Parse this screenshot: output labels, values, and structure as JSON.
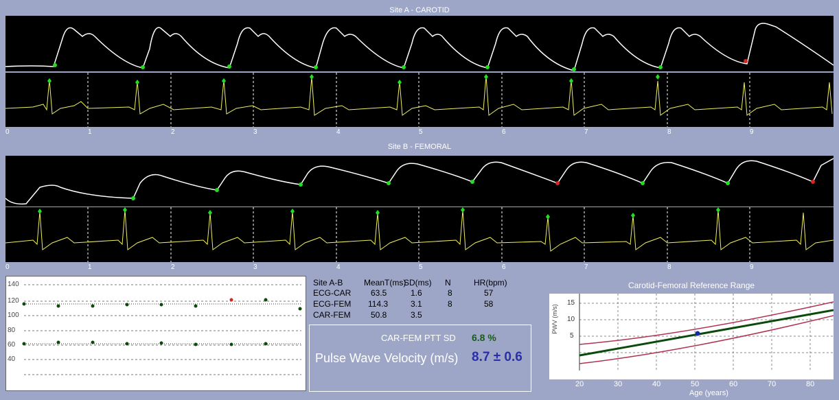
{
  "siteA": {
    "title": "Site A - CAROTID"
  },
  "siteB": {
    "title": "Site B - FEMORAL"
  },
  "xticks": [
    "0",
    "1",
    "2",
    "3",
    "4",
    "5",
    "6",
    "7",
    "8",
    "9"
  ],
  "trend": {
    "yticks": [
      "140",
      "120",
      "100",
      "80",
      "60",
      "40"
    ]
  },
  "stats": {
    "headers": [
      "Site A-B",
      "MeanT(ms)",
      "SD(ms)",
      "N",
      "HR(bpm)"
    ],
    "rows": [
      {
        "label": "ECG-CAR",
        "mean": "63.5",
        "sd": "1.6",
        "n": "8",
        "hr": "57"
      },
      {
        "label": "ECG-FEM",
        "mean": "114.3",
        "sd": "3.1",
        "n": "8",
        "hr": "58"
      },
      {
        "label": "CAR-FEM",
        "mean": "50.8",
        "sd": "3.5",
        "n": "",
        "hr": ""
      }
    ]
  },
  "result": {
    "ptt_label": "CAR-FEM PTT SD",
    "ptt_value": "6.8 %",
    "pwv_label": "Pulse Wave Velocity (m/s)",
    "pwv_value": "8.7 ± 0.6"
  },
  "reference": {
    "title": "Carotid-Femoral Reference Range",
    "ylabel": "PWV (m/s)",
    "xlabel": "Age (years)",
    "xticks": [
      "20",
      "30",
      "40",
      "50",
      "60",
      "70",
      "80"
    ],
    "yticks": [
      "15",
      "10",
      "5"
    ]
  },
  "colors": {
    "wave": "#ffffff",
    "ecg": "#f0f060",
    "marker": "#22dd22",
    "bad_marker": "#dd2222",
    "mean_curve": "#0a4a0a",
    "range_curve": "#b03050",
    "point": "#1a2aa0"
  }
}
